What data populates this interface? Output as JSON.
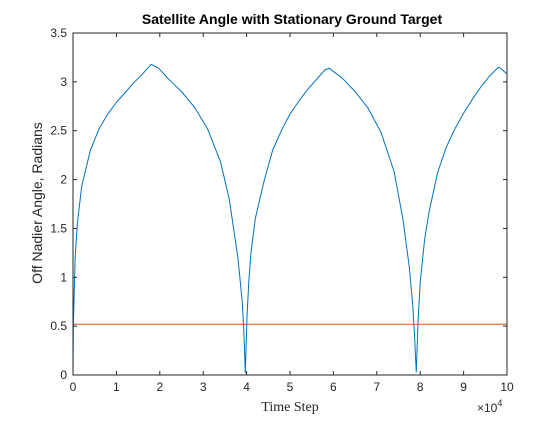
{
  "chart_data": {
    "type": "line",
    "title": "Satellite Angle with Stationary Ground Target",
    "xlabel": "Time Step",
    "ylabel": "Off Nadier Angle, Radians",
    "x_exponent_label": "×10",
    "x_exponent_power": "4",
    "xlim": [
      0,
      100000
    ],
    "ylim": [
      0,
      3.5
    ],
    "xticks": [
      0,
      10000,
      20000,
      30000,
      40000,
      50000,
      60000,
      70000,
      80000,
      90000,
      100000
    ],
    "xtick_labels": [
      "0",
      "1",
      "2",
      "3",
      "4",
      "5",
      "6",
      "7",
      "8",
      "9",
      "10"
    ],
    "yticks": [
      0,
      0.5,
      1,
      1.5,
      2,
      2.5,
      3,
      3.5
    ],
    "ytick_labels": [
      "0",
      "0.5",
      "1",
      "1.5",
      "2",
      "2.5",
      "3",
      "3.5"
    ],
    "grid": false,
    "series": [
      {
        "color": "#0072BD",
        "x": [
          0,
          100,
          500,
          1000,
          2000,
          4000,
          6000,
          8000,
          10000,
          12000,
          14000,
          16000,
          18000,
          19700,
          22000,
          25000,
          28000,
          31000,
          34000,
          36000,
          38000,
          39000,
          39300,
          39500,
          39700,
          40100,
          40500,
          41000,
          42000,
          44000,
          46000,
          48000,
          50000,
          52000,
          54000,
          56000,
          58000,
          59000,
          62000,
          65000,
          68000,
          71000,
          74000,
          76000,
          77500,
          78300,
          78700,
          78900,
          79100,
          79500,
          80000,
          81000,
          82000,
          84000,
          86000,
          88000,
          90000,
          92000,
          94000,
          96000,
          98000,
          98500,
          100000
        ],
        "values": [
          0,
          0.55,
          1.2,
          1.55,
          1.93,
          2.3,
          2.52,
          2.67,
          2.79,
          2.89,
          2.99,
          3.08,
          3.18,
          3.14,
          3.03,
          2.9,
          2.74,
          2.52,
          2.18,
          1.8,
          1.2,
          0.75,
          0.5,
          0.3,
          0.02,
          0.6,
          0.95,
          1.25,
          1.6,
          1.98,
          2.3,
          2.5,
          2.67,
          2.8,
          2.92,
          3.02,
          3.12,
          3.14,
          3.04,
          2.9,
          2.73,
          2.48,
          2.08,
          1.6,
          1.1,
          0.7,
          0.4,
          0.2,
          0.03,
          0.55,
          0.95,
          1.38,
          1.66,
          2.07,
          2.33,
          2.52,
          2.68,
          2.82,
          2.95,
          3.06,
          3.15,
          3.14,
          3.08
        ]
      },
      {
        "color": "#D95319",
        "x": [
          0,
          100000
        ],
        "values": [
          0.52,
          0.52
        ]
      }
    ]
  }
}
